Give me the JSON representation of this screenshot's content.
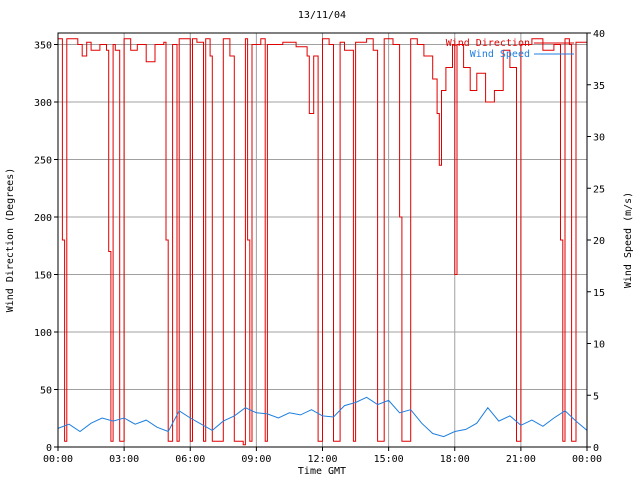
{
  "chart_data": {
    "type": "line",
    "title": "13/11/04",
    "xlabel": "Time GMT",
    "ylabel_left": "Wind Direction (Degrees)",
    "ylabel_right": "Wind Speed (m/s)",
    "x_ticks": [
      "00:00",
      "03:00",
      "06:00",
      "09:00",
      "12:00",
      "15:00",
      "18:00",
      "21:00",
      "00:00"
    ],
    "x_range_hours": [
      0,
      24
    ],
    "y_left_ticks": [
      0,
      50,
      100,
      150,
      200,
      250,
      300,
      350
    ],
    "y_left_range": [
      0,
      360
    ],
    "y_right_ticks": [
      0,
      5,
      10,
      15,
      20,
      25,
      30,
      35,
      40
    ],
    "y_right_range": [
      0,
      40
    ],
    "grid": true,
    "legend_position": "top-right",
    "colors": {
      "direction": "#e00000",
      "speed": "#1e7fe0"
    },
    "series": [
      {
        "name": "Wind Direction",
        "axis": "left",
        "points": [
          [
            0.0,
            355
          ],
          [
            0.15,
            355
          ],
          [
            0.2,
            180
          ],
          [
            0.3,
            5
          ],
          [
            0.4,
            355
          ],
          [
            0.9,
            350
          ],
          [
            1.1,
            340
          ],
          [
            1.3,
            352
          ],
          [
            1.5,
            345
          ],
          [
            1.9,
            350
          ],
          [
            2.2,
            345
          ],
          [
            2.3,
            170
          ],
          [
            2.4,
            5
          ],
          [
            2.5,
            350
          ],
          [
            2.6,
            345
          ],
          [
            2.8,
            5
          ],
          [
            3.0,
            355
          ],
          [
            3.3,
            345
          ],
          [
            3.6,
            350
          ],
          [
            4.0,
            335
          ],
          [
            4.4,
            350
          ],
          [
            4.8,
            352
          ],
          [
            4.9,
            180
          ],
          [
            5.0,
            5
          ],
          [
            5.2,
            350
          ],
          [
            5.4,
            5
          ],
          [
            5.5,
            355
          ],
          [
            6.0,
            5
          ],
          [
            6.1,
            355
          ],
          [
            6.3,
            352
          ],
          [
            6.6,
            5
          ],
          [
            6.7,
            355
          ],
          [
            6.9,
            340
          ],
          [
            7.0,
            5
          ],
          [
            7.5,
            355
          ],
          [
            7.8,
            340
          ],
          [
            8.0,
            5
          ],
          [
            8.4,
            2
          ],
          [
            8.5,
            355
          ],
          [
            8.6,
            180
          ],
          [
            8.7,
            5
          ],
          [
            8.8,
            350
          ],
          [
            9.2,
            355
          ],
          [
            9.4,
            5
          ],
          [
            9.5,
            350
          ],
          [
            10.2,
            352
          ],
          [
            10.8,
            348
          ],
          [
            11.3,
            340
          ],
          [
            11.4,
            290
          ],
          [
            11.6,
            340
          ],
          [
            11.8,
            5
          ],
          [
            12.0,
            355
          ],
          [
            12.3,
            350
          ],
          [
            12.5,
            5
          ],
          [
            12.8,
            352
          ],
          [
            13.0,
            345
          ],
          [
            13.4,
            5
          ],
          [
            13.5,
            352
          ],
          [
            14.0,
            355
          ],
          [
            14.3,
            345
          ],
          [
            14.5,
            5
          ],
          [
            14.8,
            355
          ],
          [
            15.2,
            350
          ],
          [
            15.5,
            200
          ],
          [
            15.6,
            5
          ],
          [
            16.0,
            355
          ],
          [
            16.3,
            350
          ],
          [
            16.6,
            340
          ],
          [
            17.0,
            320
          ],
          [
            17.2,
            290
          ],
          [
            17.3,
            245
          ],
          [
            17.4,
            310
          ],
          [
            17.6,
            330
          ],
          [
            17.9,
            350
          ],
          [
            18.0,
            150
          ],
          [
            18.1,
            350
          ],
          [
            18.4,
            330
          ],
          [
            18.7,
            310
          ],
          [
            19.0,
            325
          ],
          [
            19.4,
            300
          ],
          [
            19.8,
            310
          ],
          [
            20.2,
            345
          ],
          [
            20.5,
            330
          ],
          [
            20.8,
            5
          ],
          [
            21.0,
            350
          ],
          [
            21.5,
            355
          ],
          [
            22.0,
            345
          ],
          [
            22.5,
            350
          ],
          [
            22.8,
            180
          ],
          [
            22.9,
            5
          ],
          [
            23.0,
            355
          ],
          [
            23.2,
            350
          ],
          [
            23.3,
            5
          ],
          [
            23.5,
            352
          ],
          [
            24.0,
            340
          ]
        ]
      },
      {
        "name": "Wind Speed",
        "axis": "right",
        "points": [
          [
            0.0,
            1.8
          ],
          [
            0.5,
            2.2
          ],
          [
            1.0,
            1.5
          ],
          [
            1.5,
            2.3
          ],
          [
            2.0,
            2.8
          ],
          [
            2.5,
            2.5
          ],
          [
            3.0,
            2.8
          ],
          [
            3.5,
            2.2
          ],
          [
            4.0,
            2.6
          ],
          [
            4.5,
            1.9
          ],
          [
            5.0,
            1.5
          ],
          [
            5.5,
            3.5
          ],
          [
            6.0,
            2.8
          ],
          [
            6.5,
            2.2
          ],
          [
            7.0,
            1.6
          ],
          [
            7.5,
            2.5
          ],
          [
            8.0,
            3.0
          ],
          [
            8.5,
            3.8
          ],
          [
            9.0,
            3.3
          ],
          [
            9.5,
            3.2
          ],
          [
            10.0,
            2.8
          ],
          [
            10.5,
            3.3
          ],
          [
            11.0,
            3.1
          ],
          [
            11.5,
            3.6
          ],
          [
            12.0,
            3.0
          ],
          [
            12.5,
            2.9
          ],
          [
            13.0,
            4.0
          ],
          [
            13.5,
            4.3
          ],
          [
            14.0,
            4.8
          ],
          [
            14.5,
            4.1
          ],
          [
            15.0,
            4.5
          ],
          [
            15.5,
            3.3
          ],
          [
            16.0,
            3.6
          ],
          [
            16.5,
            2.3
          ],
          [
            17.0,
            1.3
          ],
          [
            17.5,
            1.0
          ],
          [
            18.0,
            1.5
          ],
          [
            18.5,
            1.7
          ],
          [
            19.0,
            2.3
          ],
          [
            19.5,
            3.8
          ],
          [
            20.0,
            2.5
          ],
          [
            20.5,
            3.0
          ],
          [
            21.0,
            2.1
          ],
          [
            21.5,
            2.6
          ],
          [
            22.0,
            2.0
          ],
          [
            22.5,
            2.8
          ],
          [
            23.0,
            3.5
          ],
          [
            23.5,
            2.5
          ],
          [
            24.0,
            1.6
          ]
        ]
      }
    ]
  }
}
